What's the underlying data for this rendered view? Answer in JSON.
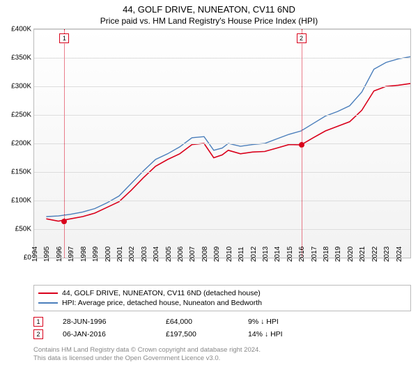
{
  "title": "44, GOLF DRIVE, NUNEATON, CV11 6ND",
  "subtitle": "Price paid vs. HM Land Registry's House Price Index (HPI)",
  "chart": {
    "type": "line",
    "background_top": "#ffffff",
    "background_bottom": "#f2f2f2",
    "grid_color": "#dddddd",
    "x": {
      "min": 1994,
      "max": 2025,
      "ticks": [
        1994,
        1995,
        1996,
        1997,
        1998,
        1999,
        2000,
        2001,
        2002,
        2003,
        2004,
        2005,
        2006,
        2007,
        2008,
        2009,
        2010,
        2011,
        2012,
        2013,
        2014,
        2015,
        2016,
        2017,
        2018,
        2019,
        2020,
        2021,
        2022,
        2023,
        2024
      ]
    },
    "y": {
      "min": 0,
      "max": 400000,
      "tick_step": 50000,
      "labels": [
        "£0",
        "£50K",
        "£100K",
        "£150K",
        "£200K",
        "£250K",
        "£300K",
        "£350K",
        "£400K"
      ]
    },
    "series": [
      {
        "name": "44, GOLF DRIVE, NUNEATON, CV11 6ND (detached house)",
        "color": "#d9001b",
        "width": 1.6,
        "data": [
          [
            1995,
            68000
          ],
          [
            1996,
            64000
          ],
          [
            1997,
            68000
          ],
          [
            1998,
            72000
          ],
          [
            1999,
            78000
          ],
          [
            2000,
            88000
          ],
          [
            2001,
            98000
          ],
          [
            2002,
            118000
          ],
          [
            2003,
            140000
          ],
          [
            2004,
            160000
          ],
          [
            2005,
            172000
          ],
          [
            2006,
            182000
          ],
          [
            2007,
            198000
          ],
          [
            2008,
            200000
          ],
          [
            2008.8,
            175000
          ],
          [
            2009.5,
            180000
          ],
          [
            2010,
            188000
          ],
          [
            2011,
            182000
          ],
          [
            2012,
            185000
          ],
          [
            2013,
            186000
          ],
          [
            2014,
            192000
          ],
          [
            2015,
            198000
          ],
          [
            2016,
            197500
          ],
          [
            2017,
            210000
          ],
          [
            2018,
            222000
          ],
          [
            2019,
            230000
          ],
          [
            2020,
            238000
          ],
          [
            2021,
            258000
          ],
          [
            2022,
            292000
          ],
          [
            2023,
            300000
          ],
          [
            2024,
            302000
          ],
          [
            2025,
            305000
          ]
        ]
      },
      {
        "name": "HPI: Average price, detached house, Nuneaton and Bedworth",
        "color": "#4a7ebb",
        "width": 1.4,
        "data": [
          [
            1995,
            72000
          ],
          [
            1996,
            73000
          ],
          [
            1997,
            76000
          ],
          [
            1998,
            80000
          ],
          [
            1999,
            86000
          ],
          [
            2000,
            96000
          ],
          [
            2001,
            108000
          ],
          [
            2002,
            130000
          ],
          [
            2003,
            152000
          ],
          [
            2004,
            172000
          ],
          [
            2005,
            182000
          ],
          [
            2006,
            194000
          ],
          [
            2007,
            210000
          ],
          [
            2008,
            212000
          ],
          [
            2008.8,
            188000
          ],
          [
            2009.5,
            192000
          ],
          [
            2010,
            200000
          ],
          [
            2011,
            195000
          ],
          [
            2012,
            198000
          ],
          [
            2013,
            200000
          ],
          [
            2014,
            208000
          ],
          [
            2015,
            216000
          ],
          [
            2016,
            222000
          ],
          [
            2017,
            235000
          ],
          [
            2018,
            248000
          ],
          [
            2019,
            256000
          ],
          [
            2020,
            266000
          ],
          [
            2021,
            290000
          ],
          [
            2022,
            330000
          ],
          [
            2023,
            342000
          ],
          [
            2024,
            348000
          ],
          [
            2025,
            352000
          ]
        ]
      }
    ],
    "sale_markers": [
      {
        "n": "1",
        "year": 1996.49,
        "price": 64000,
        "color": "#d9001b"
      },
      {
        "n": "2",
        "year": 2016.02,
        "price": 197500,
        "color": "#d9001b"
      }
    ]
  },
  "legend": [
    {
      "color": "#d9001b",
      "label": "44, GOLF DRIVE, NUNEATON, CV11 6ND (detached house)"
    },
    {
      "color": "#4a7ebb",
      "label": "HPI: Average price, detached house, Nuneaton and Bedworth"
    }
  ],
  "sales": [
    {
      "n": "1",
      "date": "28-JUN-1996",
      "price": "£64,000",
      "delta": "9% ↓ HPI",
      "color": "#d9001b"
    },
    {
      "n": "2",
      "date": "06-JAN-2016",
      "price": "£197,500",
      "delta": "14% ↓ HPI",
      "color": "#d9001b"
    }
  ],
  "footer": {
    "l1": "Contains HM Land Registry data © Crown copyright and database right 2024.",
    "l2": "This data is licensed under the Open Government Licence v3.0."
  }
}
